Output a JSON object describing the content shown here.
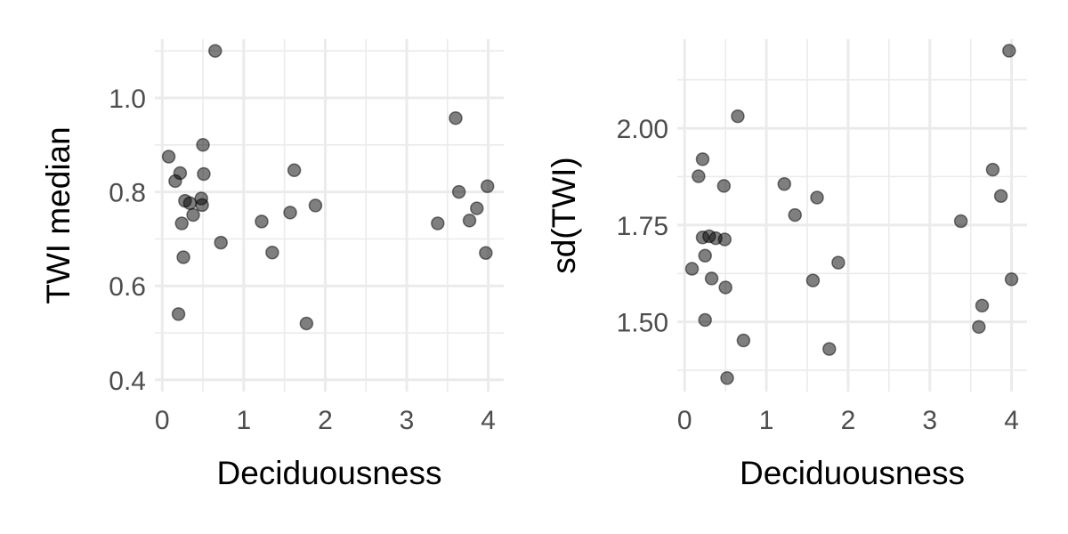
{
  "chart_data": [
    {
      "type": "scatter",
      "xlabel": "Deciduousness",
      "ylabel": "TWI median",
      "xlim": [
        -0.09,
        4.19
      ],
      "ylim": [
        0.375,
        1.125
      ],
      "x_ticks": [
        0,
        1,
        2,
        3,
        4
      ],
      "x_tick_labels": [
        "0",
        "1",
        "2",
        "3",
        "4"
      ],
      "y_ticks": [
        0.4,
        0.6,
        0.8,
        1.0
      ],
      "y_tick_labels": [
        "0.4",
        "0.6",
        "0.8",
        "1.0"
      ],
      "grid": true,
      "point_color": "#000000",
      "points": [
        {
          "x": 0.08,
          "y": 0.875
        },
        {
          "x": 0.16,
          "y": 0.823
        },
        {
          "x": 0.22,
          "y": 0.84
        },
        {
          "x": 0.2,
          "y": 0.54
        },
        {
          "x": 0.24,
          "y": 0.733
        },
        {
          "x": 0.26,
          "y": 0.661
        },
        {
          "x": 0.28,
          "y": 0.781
        },
        {
          "x": 0.34,
          "y": 0.776
        },
        {
          "x": 0.38,
          "y": 0.751
        },
        {
          "x": 0.48,
          "y": 0.786
        },
        {
          "x": 0.49,
          "y": 0.772
        },
        {
          "x": 0.5,
          "y": 0.9
        },
        {
          "x": 0.51,
          "y": 0.838
        },
        {
          "x": 0.65,
          "y": 1.1
        },
        {
          "x": 0.72,
          "y": 0.692
        },
        {
          "x": 1.22,
          "y": 0.737
        },
        {
          "x": 1.35,
          "y": 0.671
        },
        {
          "x": 1.57,
          "y": 0.756
        },
        {
          "x": 1.62,
          "y": 0.846
        },
        {
          "x": 1.77,
          "y": 0.52
        },
        {
          "x": 1.88,
          "y": 0.771
        },
        {
          "x": 3.38,
          "y": 0.733
        },
        {
          "x": 3.6,
          "y": 0.957
        },
        {
          "x": 3.64,
          "y": 0.8
        },
        {
          "x": 3.77,
          "y": 0.739
        },
        {
          "x": 3.86,
          "y": 0.765
        },
        {
          "x": 3.97,
          "y": 0.67
        },
        {
          "x": 3.99,
          "y": 0.812
        }
      ]
    },
    {
      "type": "scatter",
      "xlabel": "Deciduousness",
      "ylabel": "sd(TWI)",
      "xlim": [
        -0.09,
        4.19
      ],
      "ylim": [
        1.32,
        2.23
      ],
      "x_ticks": [
        0,
        1,
        2,
        3,
        4
      ],
      "x_tick_labels": [
        "0",
        "1",
        "2",
        "3",
        "4"
      ],
      "y_ticks": [
        1.5,
        1.75,
        2.0
      ],
      "y_tick_labels": [
        "1.50",
        "1.75",
        "2.00"
      ],
      "grid": true,
      "point_color": "#000000",
      "points": [
        {
          "x": 0.09,
          "y": 1.637
        },
        {
          "x": 0.17,
          "y": 1.876
        },
        {
          "x": 0.22,
          "y": 1.92
        },
        {
          "x": 0.22,
          "y": 1.718
        },
        {
          "x": 0.25,
          "y": 1.671
        },
        {
          "x": 0.25,
          "y": 1.505
        },
        {
          "x": 0.3,
          "y": 1.721
        },
        {
          "x": 0.33,
          "y": 1.612
        },
        {
          "x": 0.38,
          "y": 1.716
        },
        {
          "x": 0.48,
          "y": 1.851
        },
        {
          "x": 0.49,
          "y": 1.713
        },
        {
          "x": 0.5,
          "y": 1.589
        },
        {
          "x": 0.52,
          "y": 1.355
        },
        {
          "x": 0.65,
          "y": 2.031
        },
        {
          "x": 0.72,
          "y": 1.452
        },
        {
          "x": 1.22,
          "y": 1.856
        },
        {
          "x": 1.35,
          "y": 1.776
        },
        {
          "x": 1.57,
          "y": 1.607
        },
        {
          "x": 1.62,
          "y": 1.821
        },
        {
          "x": 1.77,
          "y": 1.43
        },
        {
          "x": 1.88,
          "y": 1.653
        },
        {
          "x": 3.38,
          "y": 1.76
        },
        {
          "x": 3.6,
          "y": 1.487
        },
        {
          "x": 3.64,
          "y": 1.542
        },
        {
          "x": 3.77,
          "y": 1.893
        },
        {
          "x": 3.87,
          "y": 1.825
        },
        {
          "x": 3.97,
          "y": 2.2
        },
        {
          "x": 4.0,
          "y": 1.61
        }
      ]
    }
  ]
}
